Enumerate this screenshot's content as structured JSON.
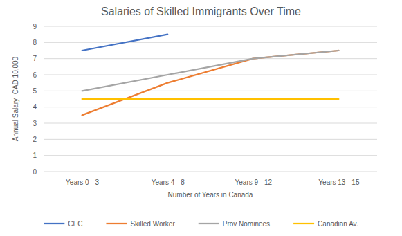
{
  "chart_data": {
    "type": "line",
    "title": "Salaries of Skilled Immigrants Over Time",
    "x_label": "Number of Years in Canada",
    "y_label": "Annual Salary  CAD 10,000",
    "categories": [
      "Years 0 - 3",
      "Years 4 - 8",
      "Years 9 - 12",
      "Years 13 - 15"
    ],
    "series": [
      {
        "name": "CEC",
        "color": "#4472c4",
        "values": [
          7.5,
          8.5,
          null,
          null
        ]
      },
      {
        "name": "Skilled Worker",
        "color": "#ed7d31",
        "values": [
          3.5,
          5.5,
          7,
          7.5
        ]
      },
      {
        "name": "Prov Nominees",
        "color": "#a5a5a5",
        "values": [
          5,
          6,
          7,
          7.5
        ]
      },
      {
        "name": "Canadian Av.",
        "color": "#ffc000",
        "values": [
          4.5,
          4.5,
          4.5,
          4.5
        ]
      }
    ],
    "ylim": [
      0,
      9
    ],
    "yticks": [
      0,
      1,
      2,
      3,
      4,
      5,
      6,
      7,
      8,
      9
    ],
    "grid": true,
    "legend": "bottom"
  }
}
